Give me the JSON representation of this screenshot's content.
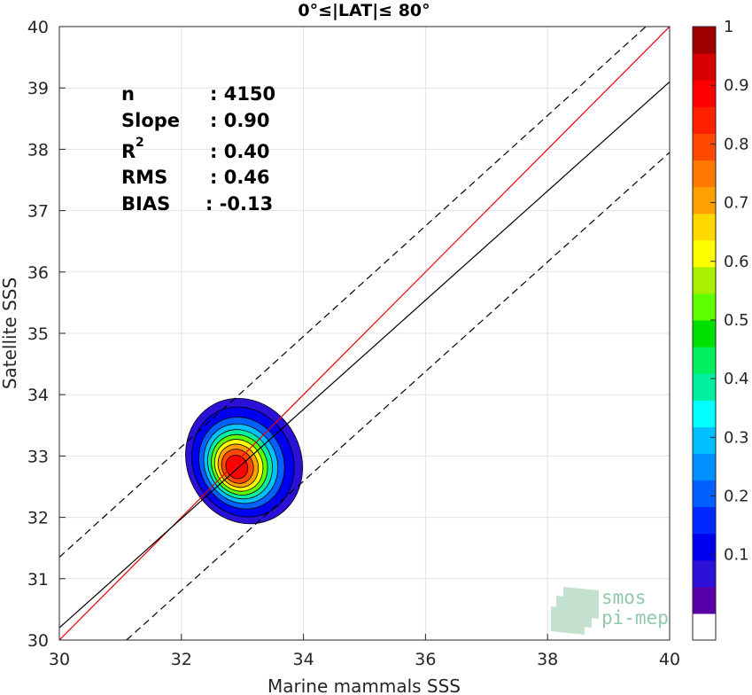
{
  "chart_data": {
    "type": "contour",
    "title": "0°≤|LAT|≤ 80°",
    "xlabel": "Marine mammals SSS",
    "ylabel": "Satellite SSS",
    "xlim": [
      30,
      40
    ],
    "ylim": [
      30,
      40
    ],
    "xticks": [
      "30",
      "32",
      "34",
      "36",
      "38",
      "40"
    ],
    "yticks": [
      "30",
      "31",
      "32",
      "33",
      "34",
      "35",
      "36",
      "37",
      "38",
      "39",
      "40"
    ],
    "grid": true,
    "stats": [
      {
        "label": "n",
        "value": ": 4150"
      },
      {
        "label": "Slope",
        "value": ": 0.90"
      },
      {
        "label": "R",
        "sup": "2",
        "value": ": 0.40"
      },
      {
        "label": "RMS",
        "value": ": 0.46"
      },
      {
        "label": "BIAS",
        "value": ": -0.13"
      }
    ],
    "lines": [
      {
        "kind": "identity",
        "color": "#e8000b",
        "style": "solid",
        "x": [
          30,
          40
        ],
        "y": [
          30,
          40
        ]
      },
      {
        "kind": "regression",
        "color": "#000000",
        "style": "solid",
        "x": [
          30,
          40
        ],
        "y": [
          30.2,
          39.1
        ]
      },
      {
        "kind": "upper-bound",
        "color": "#000000",
        "style": "dashed",
        "x": [
          30,
          40
        ],
        "y": [
          31.35,
          40.35
        ]
      },
      {
        "kind": "lower-bound",
        "color": "#000000",
        "style": "dashed",
        "x": [
          31.1,
          40
        ],
        "y": [
          30,
          37.95
        ]
      }
    ],
    "density_peak": {
      "x": 32.88,
      "y": 32.8
    },
    "density_levels": [
      0.05,
      0.1,
      0.2,
      0.3,
      0.4,
      0.5,
      0.6,
      0.7,
      0.8,
      0.9
    ],
    "colorbar": {
      "ticks": [
        "0.1",
        "0.2",
        "0.3",
        "0.4",
        "0.5",
        "0.6",
        "0.7",
        "0.8",
        "0.9",
        "1"
      ],
      "colors": [
        "#ffffff",
        "#5a00a8",
        "#2b10d8",
        "#0000f0",
        "#0028ff",
        "#0060ff",
        "#0090ff",
        "#00c0ff",
        "#00ffff",
        "#00f0a0",
        "#00f060",
        "#00e000",
        "#60ff00",
        "#a8f000",
        "#ffff00",
        "#ffd800",
        "#ffa000",
        "#ff7800",
        "#ff4800",
        "#ff2000",
        "#ff0000",
        "#d80000",
        "#a00000"
      ]
    },
    "watermark": [
      "smos",
      "pi-mep"
    ]
  }
}
